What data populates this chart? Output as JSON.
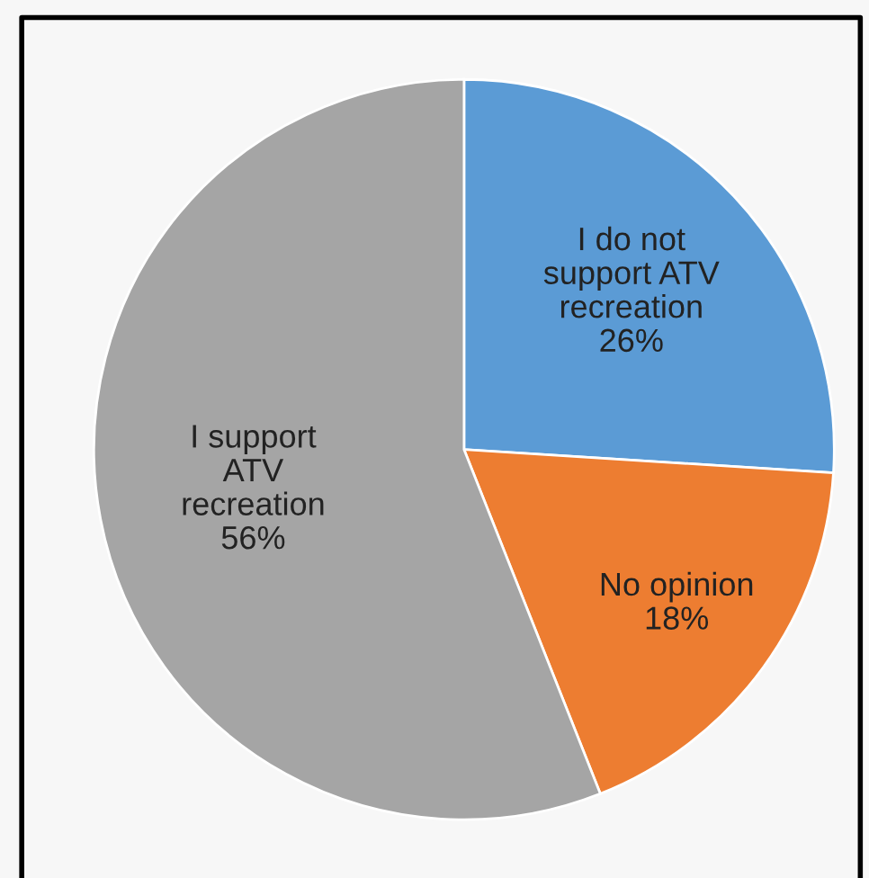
{
  "chart_data": {
    "type": "pie",
    "categories": [
      "I do not\nsupport ATV\nrecreation",
      "No opinion",
      "I support\nATV\nrecreation"
    ],
    "values": [
      26,
      18,
      56
    ],
    "value_labels": [
      "26%",
      "18%",
      "56%"
    ],
    "colors": [
      "#5b9bd5",
      "#ed7d31",
      "#a5a5a5"
    ]
  }
}
